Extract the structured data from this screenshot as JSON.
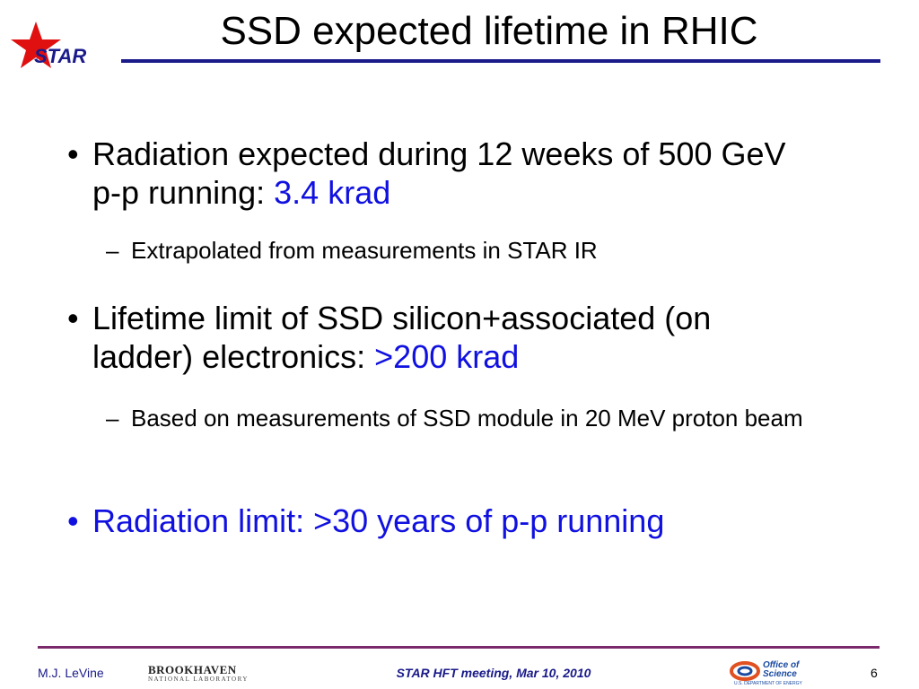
{
  "header": {
    "logo": "STAR",
    "title": "SSD expected lifetime in RHIC"
  },
  "bullets": [
    {
      "text": "Radiation expected during 12 weeks of 500 GeV p-p running:",
      "highlight": "3.4 krad",
      "sub": [
        "Extrapolated from measurements in STAR IR"
      ]
    },
    {
      "text": "Lifetime limit of SSD silicon+associated (on ladder) electronics:",
      "highlight": ">200 krad",
      "sub": [
        "Based on measurements of SSD module in 20 MeV proton beam"
      ]
    },
    {
      "highlight": "Radiation limit: >30 years of p-p running"
    }
  ],
  "footer": {
    "author": "M.J. LeVine",
    "lab": "BROOKHAVEN",
    "lab_sub": "NATIONAL LABORATORY",
    "meeting": "STAR HFT meeting, Mar 10, 2010",
    "doe": "Office of Science",
    "doe_sub": "U.S. DEPARTMENT OF ENERGY",
    "page": "6"
  }
}
